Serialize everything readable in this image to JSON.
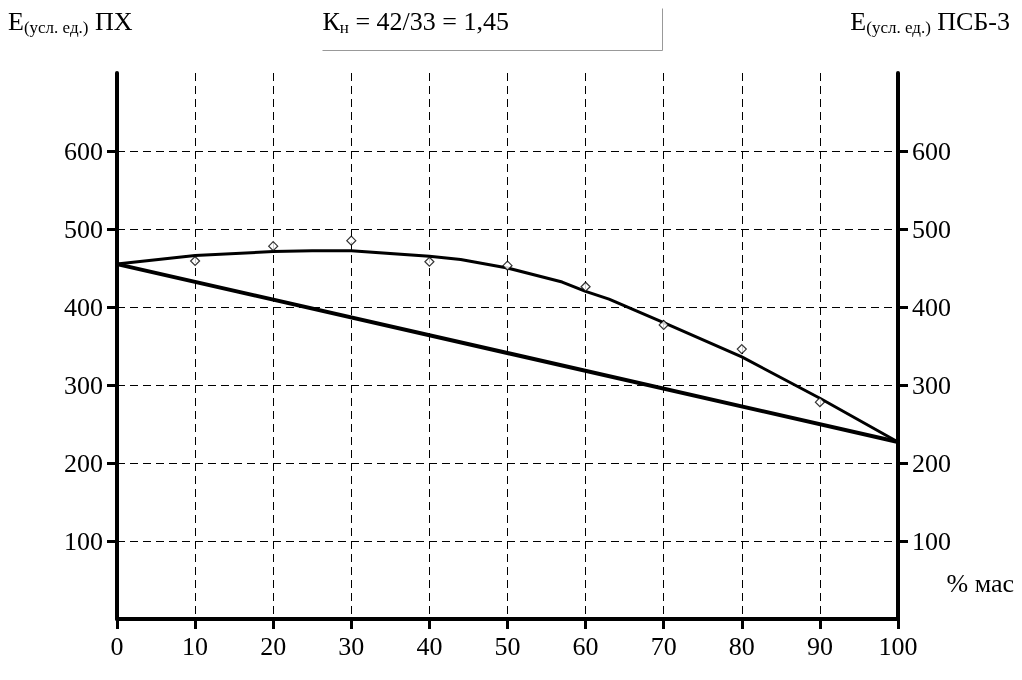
{
  "chart_data": {
    "type": "line",
    "ylabel": "E$_{(усл. ед.)}$ ПХ",
    "y2label": "E$_{(усл. ед.)}$ ПСБ-3",
    "xlabel": "% мас",
    "annotations": [
      "К$_{н}$ = 42/33 = 1,45"
    ],
    "series": [
      {
        "type": "scatter",
        "color": "#000000",
        "marker": "diamond",
        "x": [
          10,
          20,
          30,
          40,
          50,
          60,
          70,
          80,
          90
        ],
        "values": [
          459,
          478,
          485,
          458,
          453,
          426,
          377,
          346,
          278
        ]
      },
      {
        "type": "line",
        "color": "#000000",
        "marker": "none",
        "x": [
          0,
          10,
          20,
          25,
          30,
          40,
          44,
          50,
          57,
          60,
          63,
          70,
          80,
          90,
          100
        ],
        "values": [
          455,
          466,
          471,
          472,
          472,
          465,
          461,
          450,
          432,
          420,
          410,
          380,
          336,
          283,
          227
        ]
      },
      {
        "type": "line",
        "color": "#000000",
        "marker": "none",
        "x": [
          0,
          100
        ],
        "values": [
          455,
          227
        ]
      }
    ],
    "xlim": [
      0,
      100
    ],
    "xticks": [
      0,
      10,
      20,
      30,
      40,
      50,
      60,
      70,
      80,
      90,
      100
    ],
    "ylim": [
      0,
      700
    ],
    "yticks": [
      100,
      200,
      300,
      400,
      500,
      600
    ],
    "y2lim": [
      0,
      700
    ],
    "y2ticks": [
      100,
      200,
      300,
      400,
      500,
      600
    ],
    "grid": true,
    "line_style": "solid"
  }
}
